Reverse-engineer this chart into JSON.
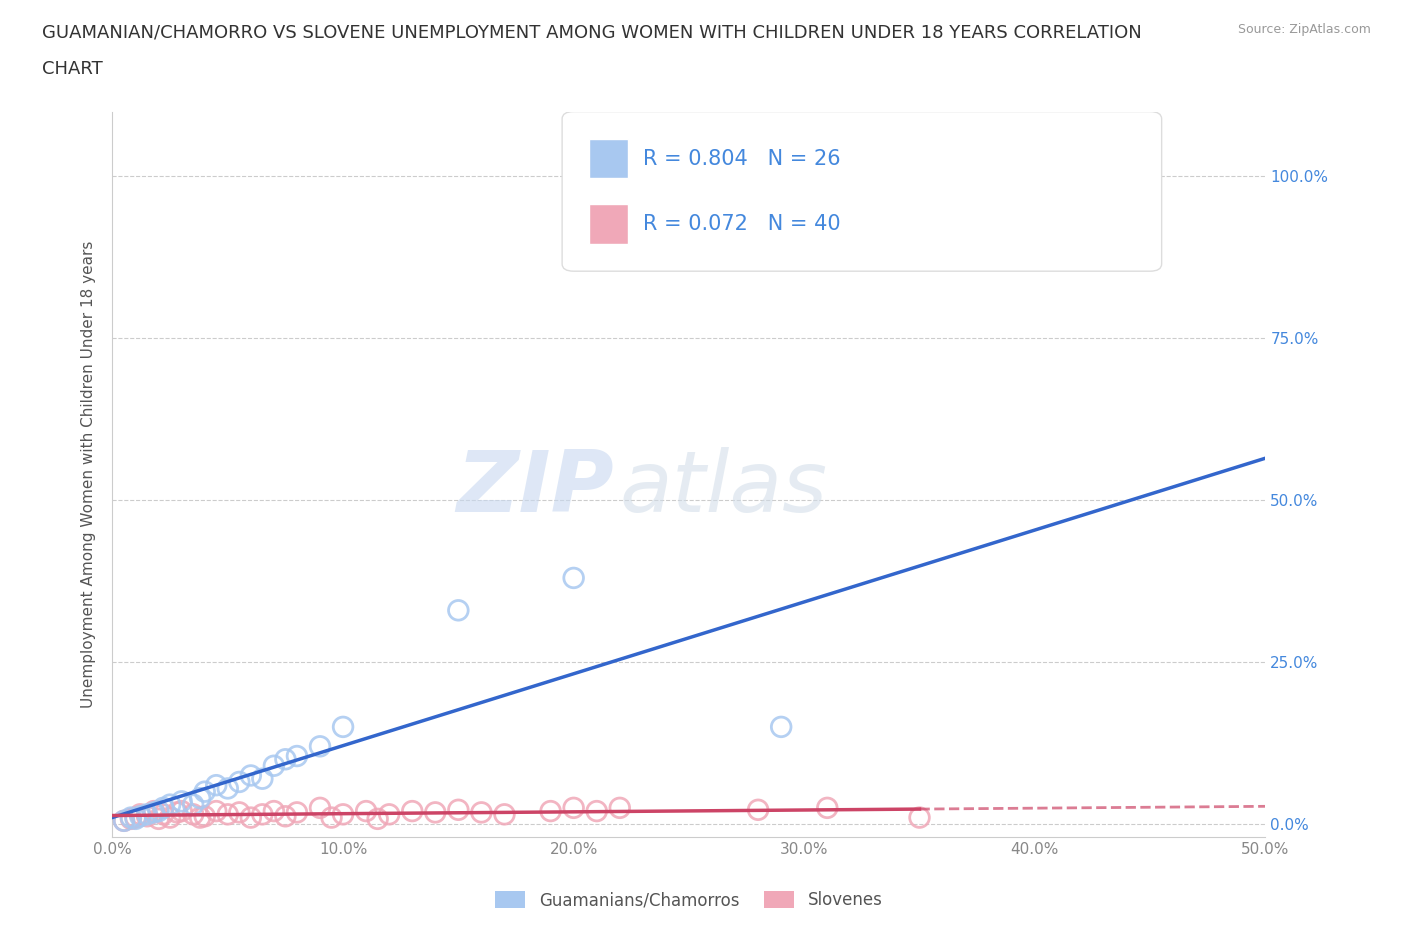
{
  "title_line1": "GUAMANIAN/CHAMORRO VS SLOVENE UNEMPLOYMENT AMONG WOMEN WITH CHILDREN UNDER 18 YEARS CORRELATION",
  "title_line2": "CHART",
  "source_text": "Source: ZipAtlas.com",
  "watermark_zip": "ZIP",
  "watermark_atlas": "atlas",
  "ylabel": "Unemployment Among Women with Children Under 18 years",
  "xlim": [
    0.0,
    0.5
  ],
  "ylim": [
    -0.02,
    1.1
  ],
  "yticks": [
    0.0,
    0.25,
    0.5,
    0.75,
    1.0
  ],
  "xticks": [
    0.0,
    0.1,
    0.2,
    0.3,
    0.4,
    0.5
  ],
  "xtick_labels": [
    "0.0%",
    "10.0%",
    "20.0%",
    "30.0%",
    "40.0%",
    "50.0%"
  ],
  "ytick_labels": [
    "0.0%",
    "25.0%",
    "50.0%",
    "75.0%",
    "100.0%"
  ],
  "guamanian_color": "#a8c8f0",
  "slovene_color": "#f0a8b8",
  "guamanian_line_color": "#3366cc",
  "slovene_line_color": "#cc4466",
  "R_guamanian": 0.804,
  "N_guamanian": 26,
  "R_slovene": 0.072,
  "N_slovene": 40,
  "legend_label_guamanian": "Guamanians/Chamorros",
  "legend_label_slovene": "Slovenes",
  "guamanian_x": [
    0.005,
    0.008,
    0.01,
    0.012,
    0.015,
    0.018,
    0.02,
    0.022,
    0.025,
    0.03,
    0.035,
    0.038,
    0.04,
    0.045,
    0.05,
    0.055,
    0.06,
    0.065,
    0.07,
    0.075,
    0.08,
    0.09,
    0.1,
    0.15,
    0.2,
    0.29
  ],
  "guamanian_y": [
    0.005,
    0.01,
    0.008,
    0.012,
    0.015,
    0.018,
    0.02,
    0.025,
    0.03,
    0.035,
    0.03,
    0.04,
    0.05,
    0.06,
    0.055,
    0.065,
    0.075,
    0.07,
    0.09,
    0.1,
    0.105,
    0.12,
    0.15,
    0.33,
    0.38,
    0.15
  ],
  "slovene_x": [
    0.005,
    0.008,
    0.01,
    0.012,
    0.015,
    0.018,
    0.02,
    0.022,
    0.025,
    0.028,
    0.03,
    0.035,
    0.038,
    0.04,
    0.045,
    0.05,
    0.055,
    0.06,
    0.065,
    0.07,
    0.075,
    0.08,
    0.09,
    0.095,
    0.1,
    0.11,
    0.115,
    0.12,
    0.13,
    0.14,
    0.15,
    0.16,
    0.17,
    0.19,
    0.2,
    0.21,
    0.22,
    0.28,
    0.31,
    0.35
  ],
  "slovene_y": [
    0.005,
    0.008,
    0.01,
    0.015,
    0.012,
    0.02,
    0.008,
    0.015,
    0.01,
    0.018,
    0.02,
    0.015,
    0.01,
    0.012,
    0.02,
    0.015,
    0.018,
    0.01,
    0.015,
    0.02,
    0.012,
    0.018,
    0.025,
    0.01,
    0.015,
    0.02,
    0.008,
    0.015,
    0.02,
    0.018,
    0.022,
    0.018,
    0.015,
    0.02,
    0.025,
    0.02,
    0.025,
    0.022,
    0.025,
    0.01
  ],
  "background_color": "#ffffff",
  "grid_color": "#cccccc",
  "title_fontsize": 13,
  "label_fontsize": 11,
  "tick_fontsize": 11,
  "legend_fontsize": 14,
  "watermark_fontsize_zip": 58,
  "watermark_fontsize_atlas": 58,
  "watermark_color": "#c8d8ee",
  "ytick_color": "#4488dd",
  "xtick_color": "#888888"
}
